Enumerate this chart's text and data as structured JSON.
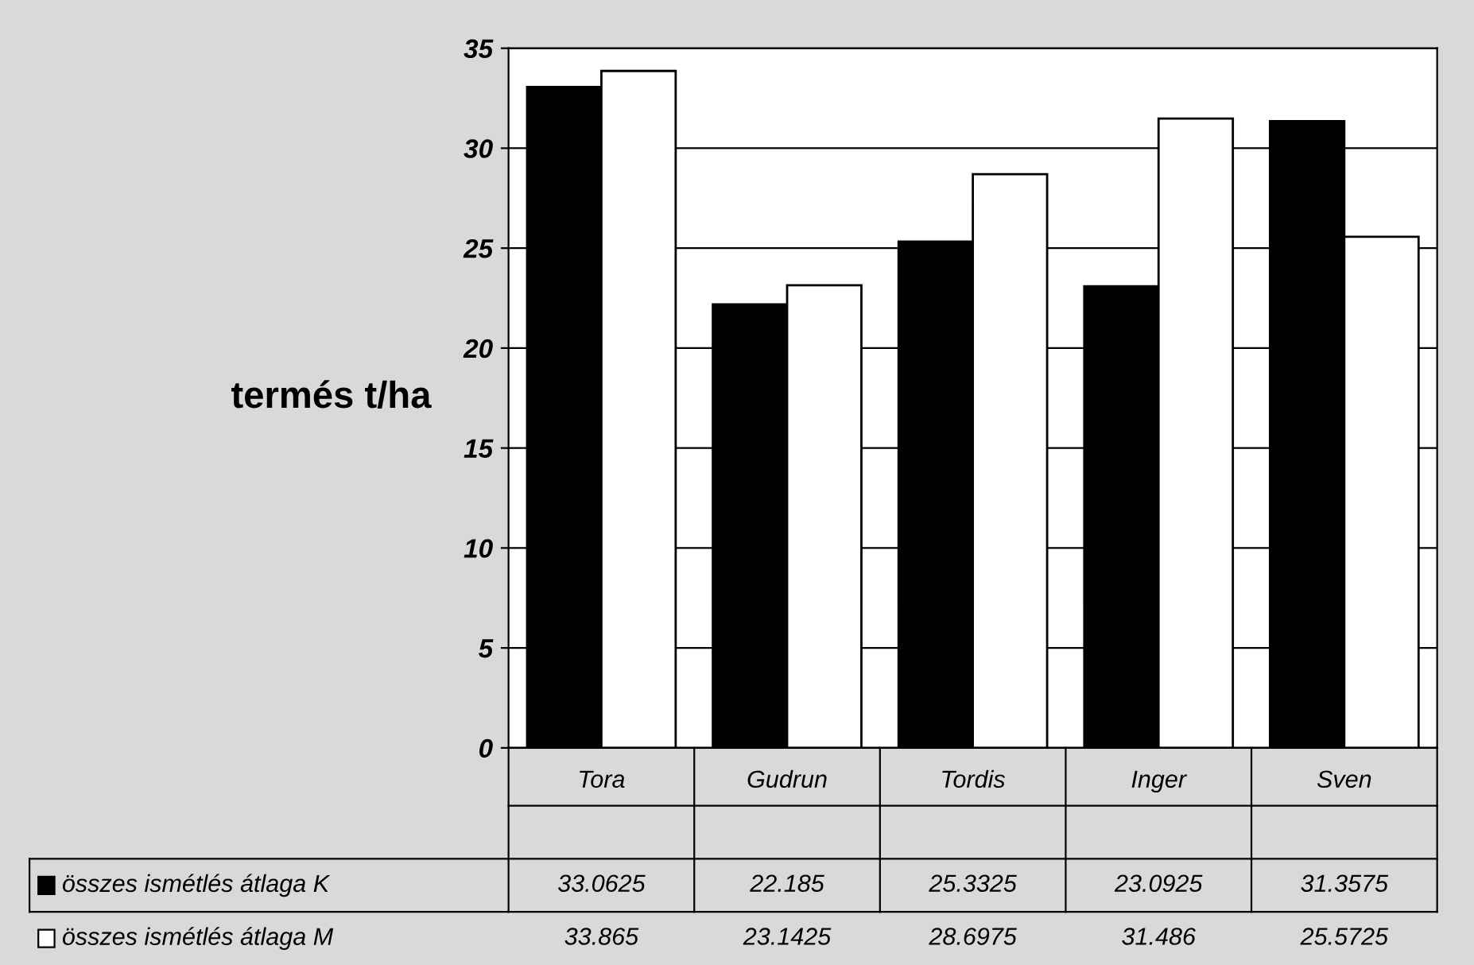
{
  "chart_data": {
    "type": "bar",
    "ylabel": "termés t/ha",
    "categories": [
      "Tora",
      "Gudrun",
      "Tordis",
      "Inger",
      "Sven"
    ],
    "series": [
      {
        "name": "összes ismétlés átlaga K",
        "color": "#000000",
        "values": [
          33.0625,
          22.185,
          25.3325,
          23.0925,
          31.3575
        ]
      },
      {
        "name": "összes ismétlés átlaga M",
        "color": "#ffffff",
        "values": [
          33.865,
          23.1425,
          28.6975,
          31.486,
          25.5725
        ]
      }
    ],
    "ylim": [
      0,
      35
    ],
    "yticks": [
      0,
      5,
      10,
      15,
      20,
      25,
      30,
      35
    ],
    "grid": "y",
    "data_labels": true,
    "legend": "bottom"
  }
}
